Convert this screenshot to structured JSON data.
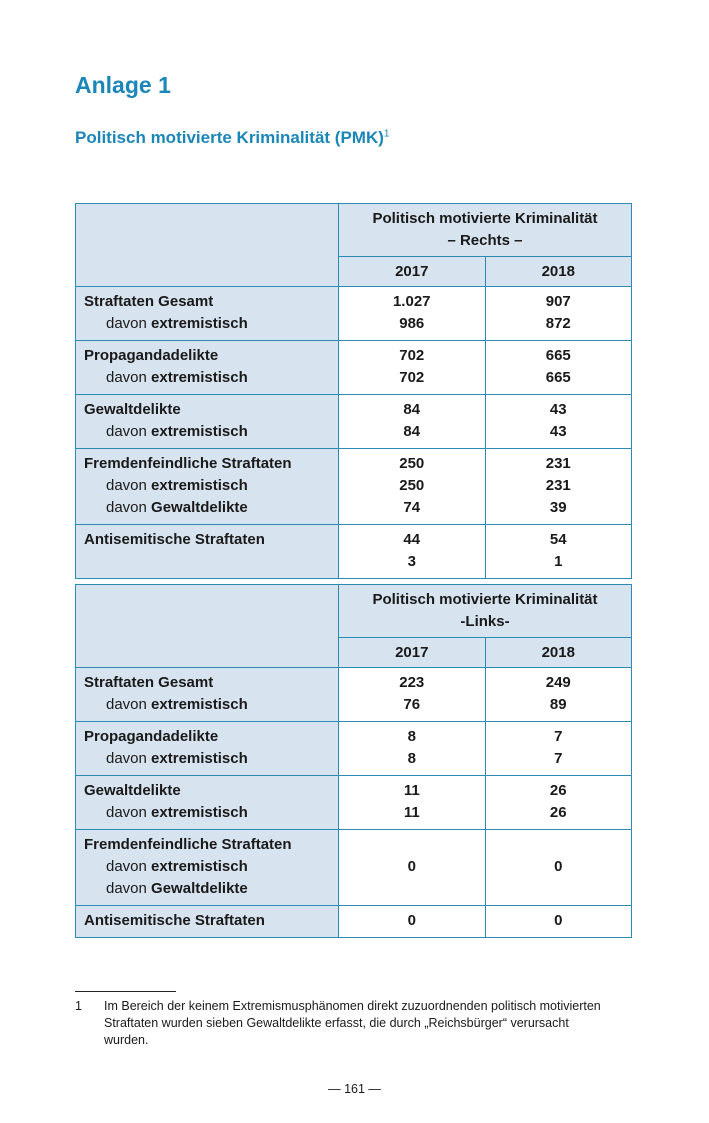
{
  "title": "Anlage 1",
  "subtitle": "Politisch motivierte Kriminalität (PMK)",
  "subtitle_sup": "1",
  "tables": [
    {
      "header_line1": "Politisch motivierte Kriminalität",
      "header_line2": "– Rechts –",
      "years": [
        "2017",
        "2018"
      ],
      "rows": [
        {
          "label": "Straftaten Gesamt",
          "sub": [
            {
              "prefix": "davon ",
              "bold": "extremistisch"
            }
          ],
          "v2017": [
            "1.027",
            "986"
          ],
          "v2018": [
            "907",
            "872"
          ]
        },
        {
          "label": "Propagandadelikte",
          "sub": [
            {
              "prefix": "davon ",
              "bold": "extremistisch"
            }
          ],
          "v2017": [
            "702",
            "702"
          ],
          "v2018": [
            "665",
            "665"
          ]
        },
        {
          "label": "Gewaltdelikte",
          "sub": [
            {
              "prefix": "davon ",
              "bold": "extremistisch"
            }
          ],
          "v2017": [
            "84",
            "84"
          ],
          "v2018": [
            "43",
            "43"
          ]
        },
        {
          "label": "Fremdenfeindliche Straftaten",
          "sub": [
            {
              "prefix": "davon ",
              "bold": "extremistisch"
            },
            {
              "prefix": "davon ",
              "bold": "Gewaltdelikte"
            }
          ],
          "v2017": [
            "250",
            "250",
            "74"
          ],
          "v2018": [
            "231",
            "231",
            "39"
          ]
        },
        {
          "label": "Antisemitische Straftaten",
          "sub": [],
          "v2017": [
            "44",
            "3"
          ],
          "v2018": [
            "54",
            "1"
          ]
        }
      ]
    },
    {
      "header_line1": "Politisch motivierte Kriminalität",
      "header_line2": "-Links-",
      "years": [
        "2017",
        "2018"
      ],
      "rows": [
        {
          "label": "Straftaten Gesamt",
          "sub": [
            {
              "prefix": "davon ",
              "bold": "extremistisch"
            }
          ],
          "v2017": [
            "223",
            "76"
          ],
          "v2018": [
            "249",
            "89"
          ]
        },
        {
          "label": "Propagandadelikte",
          "sub": [
            {
              "prefix": "davon ",
              "bold": "extremistisch"
            }
          ],
          "v2017": [
            "8",
            "8"
          ],
          "v2018": [
            "7",
            "7"
          ]
        },
        {
          "label": "Gewaltdelikte",
          "sub": [
            {
              "prefix": "davon ",
              "bold": "extremistisch"
            }
          ],
          "v2017": [
            "11",
            "11"
          ],
          "v2018": [
            "26",
            "26"
          ]
        },
        {
          "label": "Fremdenfeindliche Straftaten",
          "sub": [
            {
              "prefix": "davon ",
              "bold": "extremistisch"
            },
            {
              "prefix": "davon ",
              "bold": "Gewaltdelikte"
            }
          ],
          "v2017": [
            "0"
          ],
          "v2018": [
            "0"
          ],
          "centered": true
        },
        {
          "label": "Antisemitische Straftaten",
          "sub": [],
          "v2017": [
            "0"
          ],
          "v2018": [
            "0"
          ]
        }
      ]
    }
  ],
  "footnote": {
    "number": "1",
    "text": "Im Bereich der keinem Extremismusphänomen direkt zuzuordnenden politisch motivierten Straftaten wurden sieben Gewaltdelikte erfasst, die durch „Reichsbürger“ verursacht wurden."
  },
  "page_number": "— 161 —"
}
